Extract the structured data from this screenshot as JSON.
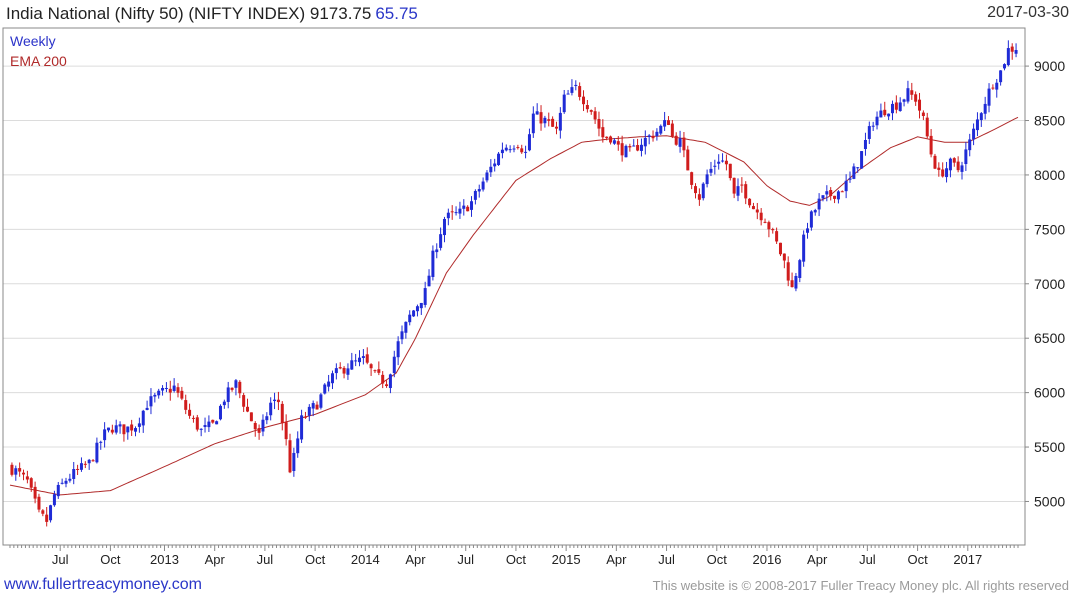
{
  "header": {
    "title": "India National (Nifty 50) (NIFTY INDEX) 9173.75",
    "change": "65.75",
    "date": "2017-03-30"
  },
  "footer": {
    "site": "www.fullertreacymoney.com",
    "copyright": "This website is © 2008-2017 Fuller Treacy Money plc. All rights reserved"
  },
  "colors": {
    "up": "#1f2bd6",
    "down": "#d01c1c",
    "ema": "#b02a2a",
    "grid": "#dcdcdc",
    "axis": "#888888"
  },
  "chart_data": {
    "type": "candlestick",
    "interval": "Weekly",
    "overlay": "EMA 200",
    "ylim": [
      4600,
      9350
    ],
    "y_ticks": [
      5000,
      5500,
      6000,
      6500,
      7000,
      7500,
      8000,
      8500,
      9000
    ],
    "y_tick_labels": [
      "5000",
      "5500",
      "6000",
      "6500",
      "7000",
      "7500",
      "8000",
      "8500",
      "9000"
    ],
    "x_tick_labels": [
      "Jul",
      "Oct",
      "2013",
      "Apr",
      "Jul",
      "Oct",
      "2014",
      "Apr",
      "Jul",
      "Oct",
      "2015",
      "Apr",
      "Jul",
      "Oct",
      "2016",
      "Apr",
      "Jul",
      "Oct",
      "2017"
    ],
    "x_tick_weeks": [
      13,
      26,
      40,
      53,
      66,
      79,
      92,
      105,
      118,
      131,
      144,
      157,
      170,
      183,
      196,
      209,
      222,
      235,
      248
    ],
    "week_count": 261,
    "price_path": [
      [
        0,
        5320
      ],
      [
        2,
        5280
      ],
      [
        5,
        5180
      ],
      [
        8,
        4880
      ],
      [
        10,
        4820
      ],
      [
        12,
        5060
      ],
      [
        15,
        5200
      ],
      [
        18,
        5280
      ],
      [
        21,
        5350
      ],
      [
        25,
        5620
      ],
      [
        27,
        5680
      ],
      [
        30,
        5660
      ],
      [
        33,
        5700
      ],
      [
        36,
        5900
      ],
      [
        40,
        6000
      ],
      [
        43,
        6050
      ],
      [
        47,
        5780
      ],
      [
        50,
        5650
      ],
      [
        53,
        5700
      ],
      [
        56,
        5950
      ],
      [
        59,
        6080
      ],
      [
        62,
        5820
      ],
      [
        65,
        5600
      ],
      [
        68,
        5900
      ],
      [
        70,
        5920
      ],
      [
        72,
        5550
      ],
      [
        73,
        5300
      ],
      [
        74,
        5400
      ],
      [
        76,
        5750
      ],
      [
        80,
        5900
      ],
      [
        84,
        6150
      ],
      [
        88,
        6250
      ],
      [
        92,
        6300
      ],
      [
        95,
        6150
      ],
      [
        98,
        6100
      ],
      [
        101,
        6450
      ],
      [
        104,
        6700
      ],
      [
        108,
        6920
      ],
      [
        110,
        7250
      ],
      [
        113,
        7600
      ],
      [
        117,
        7650
      ],
      [
        120,
        7750
      ],
      [
        124,
        8000
      ],
      [
        128,
        8250
      ],
      [
        132,
        8300
      ],
      [
        134,
        8200
      ],
      [
        136,
        8550
      ],
      [
        139,
        8500
      ],
      [
        142,
        8400
      ],
      [
        144,
        8700
      ],
      [
        147,
        8800
      ],
      [
        149,
        8700
      ],
      [
        151,
        8600
      ],
      [
        154,
        8350
      ],
      [
        156,
        8350
      ],
      [
        158,
        8250
      ],
      [
        161,
        8200
      ],
      [
        164,
        8300
      ],
      [
        168,
        8400
      ],
      [
        171,
        8500
      ],
      [
        172,
        8350
      ],
      [
        174,
        8300
      ],
      [
        177,
        7950
      ],
      [
        179,
        7800
      ],
      [
        181,
        8000
      ],
      [
        184,
        8150
      ],
      [
        186,
        8100
      ],
      [
        188,
        7800
      ],
      [
        190,
        7900
      ],
      [
        193,
        7700
      ],
      [
        196,
        7600
      ],
      [
        198,
        7450
      ],
      [
        201,
        7200
      ],
      [
        203,
        6950
      ],
      [
        205,
        7250
      ],
      [
        207,
        7550
      ],
      [
        210,
        7750
      ],
      [
        212,
        7800
      ],
      [
        215,
        7850
      ],
      [
        218,
        7950
      ],
      [
        221,
        8200
      ],
      [
        224,
        8500
      ],
      [
        227,
        8600
      ],
      [
        230,
        8650
      ],
      [
        233,
        8750
      ],
      [
        235,
        8700
      ],
      [
        237,
        8500
      ],
      [
        239,
        8200
      ],
      [
        241,
        8000
      ],
      [
        244,
        8100
      ],
      [
        246,
        8050
      ],
      [
        249,
        8300
      ],
      [
        252,
        8600
      ],
      [
        255,
        8850
      ],
      [
        257,
        8950
      ],
      [
        259,
        9150
      ],
      [
        261,
        9173
      ]
    ],
    "ema_path": [
      [
        0,
        5150
      ],
      [
        13,
        5060
      ],
      [
        26,
        5100
      ],
      [
        40,
        5320
      ],
      [
        53,
        5530
      ],
      [
        66,
        5680
      ],
      [
        79,
        5800
      ],
      [
        92,
        5980
      ],
      [
        100,
        6180
      ],
      [
        105,
        6500
      ],
      [
        113,
        7100
      ],
      [
        120,
        7450
      ],
      [
        131,
        7950
      ],
      [
        140,
        8150
      ],
      [
        148,
        8300
      ],
      [
        155,
        8330
      ],
      [
        163,
        8350
      ],
      [
        170,
        8360
      ],
      [
        180,
        8300
      ],
      [
        190,
        8120
      ],
      [
        196,
        7900
      ],
      [
        202,
        7760
      ],
      [
        207,
        7720
      ],
      [
        212,
        7800
      ],
      [
        220,
        8050
      ],
      [
        228,
        8250
      ],
      [
        235,
        8350
      ],
      [
        242,
        8300
      ],
      [
        248,
        8300
      ],
      [
        255,
        8420
      ],
      [
        261,
        8530
      ]
    ]
  }
}
